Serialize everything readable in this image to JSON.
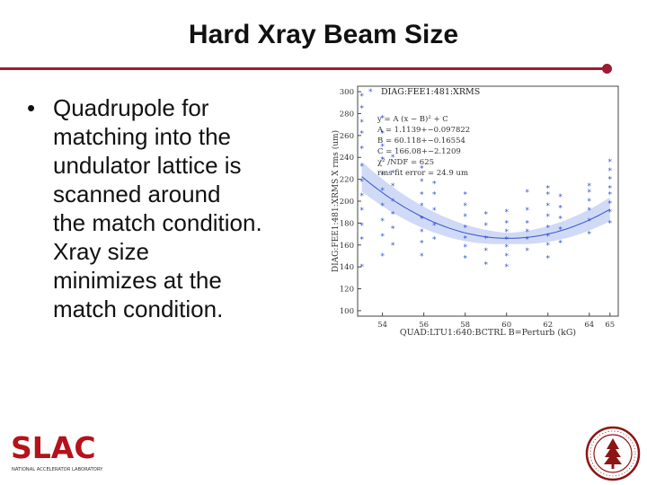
{
  "slide": {
    "title": "Hard Xray Beam Size",
    "bullet_marker": "•",
    "bullet_lines": [
      "Quadrupole for",
      "matching into the",
      "undulator lattice is",
      "scanned around",
      "the match condition.",
      "Xray size",
      "minimizes at the",
      "match condition."
    ]
  },
  "colors": {
    "accent": "#9e1b32",
    "data_blue": "#3355cc",
    "band_blue": "#c8d4f4",
    "logo_red": "#b5121b"
  },
  "logo": {
    "text": "SLAC",
    "subtitle": "NATIONAL ACCELERATOR LABORATORY",
    "seal_icon": "stanford-seal-icon"
  },
  "chart_data": {
    "type": "scatter",
    "title": "DIAG:FEE1:481:XRMS",
    "xlabel": "QUAD:LTU1:640:BCTRL B=Perturb (kG)",
    "ylabel": "DIAG:FEE1:481:XRMS X rms (um)",
    "xlim": [
      52.8,
      65.4
    ],
    "ylim": [
      95,
      305
    ],
    "xticks": [
      54,
      56,
      58,
      60,
      62,
      64,
      65
    ],
    "yticks": [
      100,
      120,
      140,
      160,
      180,
      200,
      220,
      240,
      260,
      280,
      300
    ],
    "legend_marker": "*",
    "fit_annotation": [
      "y = A (x − B)² + C",
      "A = 1.1139+−0.097822",
      "B = 60.118+−0.16554",
      "C = 166.08+−2.1209",
      "χ² /NDF = 625",
      "rms fit error = 24.9 um"
    ],
    "fit": {
      "A": 1.1139,
      "B": 60.118,
      "C": 166.08
    },
    "series": [
      {
        "name": "DIAG:FEE1:481:XRMS",
        "points": [
          [
            53.0,
            140
          ],
          [
            53.0,
            165
          ],
          [
            53.0,
            178
          ],
          [
            53.0,
            192
          ],
          [
            53.0,
            205
          ],
          [
            53.0,
            218
          ],
          [
            53.0,
            232
          ],
          [
            53.0,
            248
          ],
          [
            53.0,
            262
          ],
          [
            53.0,
            272
          ],
          [
            53.0,
            285
          ],
          [
            53.0,
            296
          ],
          [
            54.0,
            150
          ],
          [
            54.0,
            168
          ],
          [
            54.0,
            182
          ],
          [
            54.0,
            196
          ],
          [
            54.0,
            210
          ],
          [
            54.0,
            224
          ],
          [
            54.0,
            238
          ],
          [
            54.0,
            250
          ],
          [
            54.0,
            262
          ],
          [
            54.0,
            276
          ],
          [
            54.5,
            160
          ],
          [
            54.5,
            175
          ],
          [
            54.5,
            188
          ],
          [
            54.5,
            200
          ],
          [
            54.5,
            214
          ],
          [
            54.5,
            226
          ],
          [
            54.5,
            240
          ],
          [
            55.9,
            150
          ],
          [
            55.9,
            162
          ],
          [
            55.9,
            172
          ],
          [
            55.9,
            184
          ],
          [
            55.9,
            196
          ],
          [
            55.9,
            206
          ],
          [
            55.9,
            218
          ],
          [
            55.9,
            230
          ],
          [
            56.5,
            165
          ],
          [
            56.5,
            178
          ],
          [
            56.5,
            192
          ],
          [
            56.5,
            206
          ],
          [
            56.5,
            216
          ],
          [
            58.0,
            148
          ],
          [
            58.0,
            158
          ],
          [
            58.0,
            166
          ],
          [
            58.0,
            176
          ],
          [
            58.0,
            186
          ],
          [
            58.0,
            196
          ],
          [
            58.0,
            206
          ],
          [
            59.0,
            142
          ],
          [
            59.0,
            155
          ],
          [
            59.0,
            166
          ],
          [
            59.0,
            178
          ],
          [
            59.0,
            188
          ],
          [
            60.0,
            140
          ],
          [
            60.0,
            150
          ],
          [
            60.0,
            158
          ],
          [
            60.0,
            165
          ],
          [
            60.0,
            172
          ],
          [
            60.0,
            180
          ],
          [
            60.0,
            190
          ],
          [
            61.0,
            155
          ],
          [
            61.0,
            165
          ],
          [
            61.0,
            172
          ],
          [
            61.0,
            180
          ],
          [
            61.0,
            192
          ],
          [
            61.0,
            208
          ],
          [
            62.0,
            148
          ],
          [
            62.0,
            160
          ],
          [
            62.0,
            168
          ],
          [
            62.0,
            176
          ],
          [
            62.0,
            186
          ],
          [
            62.0,
            196
          ],
          [
            62.0,
            206
          ],
          [
            62.0,
            212
          ],
          [
            62.6,
            162
          ],
          [
            62.6,
            174
          ],
          [
            62.6,
            184
          ],
          [
            62.6,
            194
          ],
          [
            62.6,
            204
          ],
          [
            64.0,
            170
          ],
          [
            64.0,
            182
          ],
          [
            64.0,
            192
          ],
          [
            64.0,
            200
          ],
          [
            64.0,
            208
          ],
          [
            64.0,
            214
          ],
          [
            65.0,
            180
          ],
          [
            65.0,
            190
          ],
          [
            65.0,
            198
          ],
          [
            65.0,
            206
          ],
          [
            65.0,
            212
          ],
          [
            65.0,
            220
          ],
          [
            65.0,
            228
          ],
          [
            65.0,
            236
          ]
        ]
      }
    ]
  }
}
